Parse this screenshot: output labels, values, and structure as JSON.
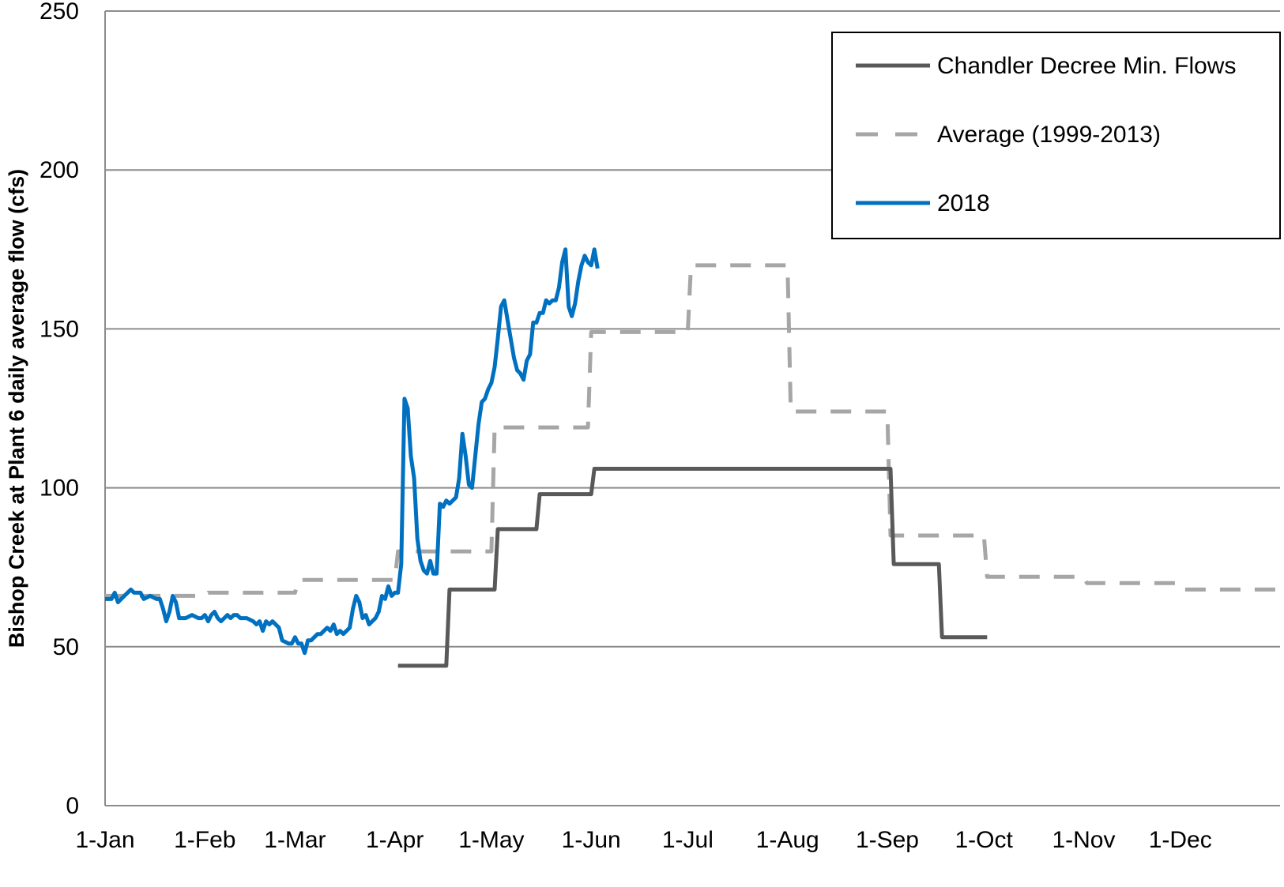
{
  "chart_data": {
    "type": "line",
    "title": "",
    "xlabel": "",
    "ylabel": "Bishop Creek at Plant 6 daily average flow (cfs)",
    "x_ticks": [
      "1-Jan",
      "1-Feb",
      "1-Mar",
      "1-Apr",
      "1-May",
      "1-Jun",
      "1-Jul",
      "1-Aug",
      "1-Sep",
      "1-Oct",
      "1-Nov",
      "1-Dec"
    ],
    "x_tick_days": [
      0,
      31,
      59,
      90,
      120,
      151,
      181,
      212,
      243,
      273,
      304,
      334
    ],
    "xlim_days": [
      0,
      365
    ],
    "y_ticks": [
      0,
      50,
      100,
      150,
      200,
      250
    ],
    "ylim": [
      0,
      250
    ],
    "grid": "horizontal",
    "legend_position": "top-right",
    "legend_order": [
      "chandler",
      "average",
      "y2018"
    ],
    "series": {
      "chandler": {
        "name": "Chandler Decree Min. Flows",
        "color": "#595959",
        "style": "solid",
        "points": [
          [
            91,
            44
          ],
          [
            106,
            44
          ],
          [
            107,
            68
          ],
          [
            121,
            68
          ],
          [
            122,
            87
          ],
          [
            134,
            87
          ],
          [
            135,
            98
          ],
          [
            151,
            98
          ],
          [
            152,
            106
          ],
          [
            244,
            106
          ],
          [
            245,
            76
          ],
          [
            259,
            76
          ],
          [
            260,
            53
          ],
          [
            274,
            53
          ]
        ]
      },
      "average": {
        "name": "Average (1999-2013)",
        "color": "#a6a6a6",
        "style": "dashed",
        "points": [
          [
            0,
            66
          ],
          [
            31,
            66
          ],
          [
            32,
            67
          ],
          [
            59,
            67
          ],
          [
            60,
            71
          ],
          [
            90,
            71
          ],
          [
            91,
            80
          ],
          [
            120,
            80
          ],
          [
            121,
            119
          ],
          [
            150,
            119
          ],
          [
            151,
            149
          ],
          [
            181,
            149
          ],
          [
            182,
            170
          ],
          [
            212,
            170
          ],
          [
            213,
            124
          ],
          [
            243,
            124
          ],
          [
            244,
            85
          ],
          [
            273,
            85
          ],
          [
            274,
            72
          ],
          [
            304,
            72
          ],
          [
            305,
            70
          ],
          [
            334,
            70
          ],
          [
            335,
            68
          ],
          [
            365,
            68
          ]
        ]
      },
      "y2018": {
        "name": "2018",
        "color": "#0070c0",
        "style": "solid",
        "points": [
          [
            0,
            65
          ],
          [
            2,
            65
          ],
          [
            3,
            67
          ],
          [
            4,
            64
          ],
          [
            6,
            66
          ],
          [
            8,
            68
          ],
          [
            9,
            67
          ],
          [
            11,
            67
          ],
          [
            12,
            65
          ],
          [
            14,
            66
          ],
          [
            16,
            65
          ],
          [
            17,
            65
          ],
          [
            18,
            62
          ],
          [
            19,
            58
          ],
          [
            20,
            61
          ],
          [
            21,
            66
          ],
          [
            22,
            64
          ],
          [
            23,
            59
          ],
          [
            25,
            59
          ],
          [
            27,
            60
          ],
          [
            29,
            59
          ],
          [
            30,
            59
          ],
          [
            31,
            60
          ],
          [
            32,
            58
          ],
          [
            33,
            60
          ],
          [
            34,
            61
          ],
          [
            35,
            59
          ],
          [
            36,
            58
          ],
          [
            38,
            60
          ],
          [
            39,
            59
          ],
          [
            40,
            60
          ],
          [
            41,
            60
          ],
          [
            42,
            59
          ],
          [
            44,
            59
          ],
          [
            46,
            58
          ],
          [
            47,
            57
          ],
          [
            48,
            58
          ],
          [
            49,
            55
          ],
          [
            50,
            58
          ],
          [
            51,
            57
          ],
          [
            52,
            58
          ],
          [
            53,
            57
          ],
          [
            54,
            56
          ],
          [
            55,
            52
          ],
          [
            57,
            51
          ],
          [
            58,
            51
          ],
          [
            59,
            53
          ],
          [
            60,
            51
          ],
          [
            61,
            51
          ],
          [
            62,
            48
          ],
          [
            63,
            52
          ],
          [
            64,
            52
          ],
          [
            65,
            53
          ],
          [
            66,
            54
          ],
          [
            67,
            54
          ],
          [
            68,
            55
          ],
          [
            69,
            56
          ],
          [
            70,
            55
          ],
          [
            71,
            57
          ],
          [
            72,
            54
          ],
          [
            73,
            55
          ],
          [
            74,
            54
          ],
          [
            76,
            56
          ],
          [
            77,
            62
          ],
          [
            78,
            66
          ],
          [
            79,
            64
          ],
          [
            80,
            59
          ],
          [
            81,
            60
          ],
          [
            82,
            57
          ],
          [
            83,
            58
          ],
          [
            84,
            59
          ],
          [
            85,
            61
          ],
          [
            86,
            66
          ],
          [
            87,
            65
          ],
          [
            88,
            69
          ],
          [
            89,
            66
          ],
          [
            90,
            67
          ],
          [
            91,
            67
          ],
          [
            92,
            76
          ],
          [
            93,
            128
          ],
          [
            94,
            125
          ],
          [
            95,
            110
          ],
          [
            96,
            103
          ],
          [
            97,
            84
          ],
          [
            98,
            77
          ],
          [
            99,
            74
          ],
          [
            100,
            73
          ],
          [
            101,
            77
          ],
          [
            102,
            73
          ],
          [
            103,
            73
          ],
          [
            104,
            95
          ],
          [
            105,
            94
          ],
          [
            106,
            96
          ],
          [
            107,
            95
          ],
          [
            108,
            96
          ],
          [
            109,
            97
          ],
          [
            110,
            103
          ],
          [
            111,
            117
          ],
          [
            112,
            110
          ],
          [
            113,
            101
          ],
          [
            114,
            100
          ],
          [
            115,
            110
          ],
          [
            116,
            120
          ],
          [
            117,
            127
          ],
          [
            118,
            128
          ],
          [
            119,
            131
          ],
          [
            120,
            133
          ],
          [
            121,
            138
          ],
          [
            122,
            147
          ],
          [
            123,
            157
          ],
          [
            124,
            159
          ],
          [
            125,
            153
          ],
          [
            126,
            147
          ],
          [
            127,
            141
          ],
          [
            128,
            137
          ],
          [
            129,
            136
          ],
          [
            130,
            134
          ],
          [
            131,
            140
          ],
          [
            132,
            142
          ],
          [
            133,
            152
          ],
          [
            134,
            152
          ],
          [
            135,
            155
          ],
          [
            136,
            155
          ],
          [
            137,
            159
          ],
          [
            138,
            158
          ],
          [
            139,
            159
          ],
          [
            140,
            159
          ],
          [
            141,
            163
          ],
          [
            142,
            171
          ],
          [
            143,
            175
          ],
          [
            144,
            157
          ],
          [
            145,
            154
          ],
          [
            146,
            158
          ],
          [
            147,
            165
          ],
          [
            148,
            170
          ],
          [
            149,
            173
          ],
          [
            150,
            171
          ],
          [
            151,
            170
          ],
          [
            152,
            175
          ],
          [
            153,
            169
          ]
        ]
      }
    }
  }
}
